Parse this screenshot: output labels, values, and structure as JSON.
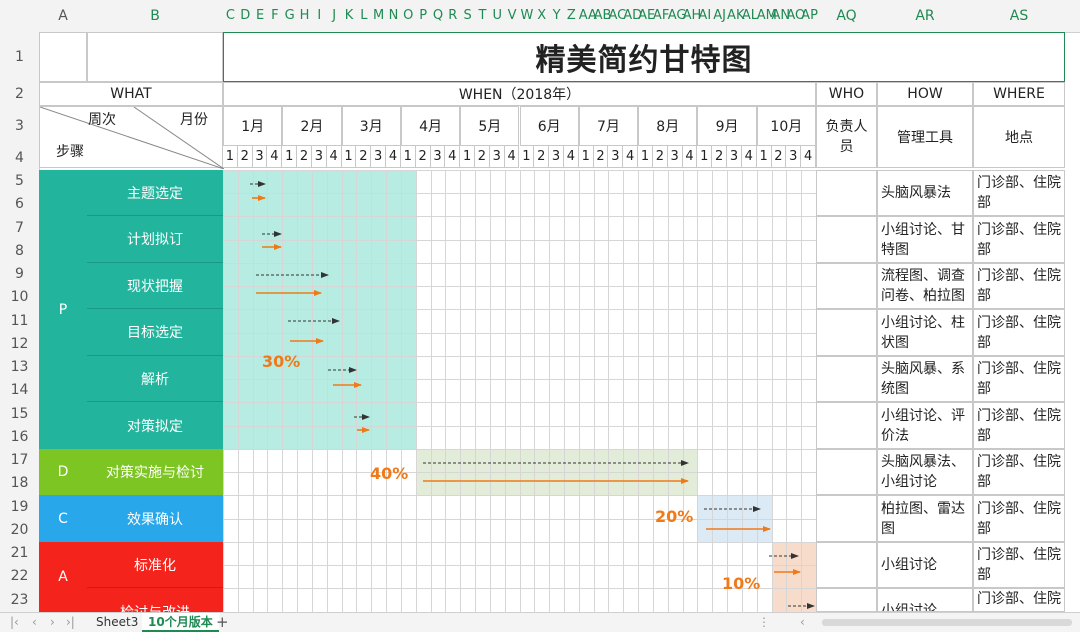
{
  "column_headers": [
    "A",
    "B",
    "C",
    "D",
    "E",
    "F",
    "G",
    "H",
    "I",
    "J",
    "K",
    "L",
    "M",
    "N",
    "O",
    "P",
    "Q",
    "R",
    "S",
    "T",
    "U",
    "V",
    "W",
    "X",
    "Y",
    "Z",
    "AA",
    "AB",
    "AC",
    "AD",
    "AE",
    "AF",
    "AG",
    "AH",
    "AI",
    "AJ",
    "AK",
    "AL",
    "AM",
    "AN",
    "AO",
    "AP",
    "AQ",
    "AR",
    "AS"
  ],
  "row_headers": [
    "1",
    "2",
    "3",
    "4",
    "5",
    "6",
    "7",
    "8",
    "9",
    "10",
    "11",
    "12",
    "13",
    "14",
    "15",
    "16",
    "17",
    "18",
    "19",
    "20",
    "21",
    "22",
    "23"
  ],
  "title": "精美简约甘特图",
  "headers": {
    "what": "WHAT",
    "when": "WHEN（2018年）",
    "who": "WHO",
    "how": "HOW",
    "where": "WHERE",
    "week": "周次",
    "month": "月份",
    "step": "步骤",
    "owner": "负责人员",
    "tool": "管理工具",
    "place": "地点"
  },
  "months": [
    "1月",
    "2月",
    "3月",
    "4月",
    "5月",
    "6月",
    "7月",
    "8月",
    "9月",
    "10月"
  ],
  "weeks": [
    "1",
    "2",
    "3",
    "4"
  ],
  "stages": [
    {
      "letter": "P",
      "color": "#22b49c"
    },
    {
      "letter": "D",
      "color": "#7dc522"
    },
    {
      "letter": "C",
      "color": "#28a8ea"
    },
    {
      "letter": "A",
      "color": "#f4231c"
    }
  ],
  "tasks": [
    {
      "name": "主题选定",
      "how": "头脑风暴法",
      "where": "门诊部、住院部"
    },
    {
      "name": "计划拟订",
      "how": "小组讨论、甘特图",
      "where": "门诊部、住院部"
    },
    {
      "name": "现状把握",
      "how": "流程图、调查问卷、柏拉图",
      "where": "门诊部、住院部"
    },
    {
      "name": "目标选定",
      "how": "小组讨论、柱状图",
      "where": "门诊部、住院部"
    },
    {
      "name": "解析",
      "how": "头脑风暴、系统图",
      "where": "门诊部、住院部"
    },
    {
      "name": "对策拟定",
      "how": "小组讨论、评价法",
      "where": "门诊部、住院部"
    },
    {
      "name": "对策实施与检讨",
      "how": "头脑风暴法、小组讨论",
      "where": "门诊部、住院部"
    },
    {
      "name": "效果确认",
      "how": "柏拉图、雷达图",
      "where": "门诊部、住院部"
    },
    {
      "name": "标准化",
      "how": "小组讨论",
      "where": "门诊部、住院部"
    },
    {
      "name": "检讨与改进",
      "how": "小组讨论",
      "where": "门诊部、住院部"
    }
  ],
  "percentages": {
    "plan": "30%",
    "do": "40%",
    "check": "20%",
    "act": "10%"
  },
  "sheet_tabs": [
    "Sheet3",
    "10个月版本"
  ],
  "active_tab": "10个月版本",
  "colors": {
    "plan_bg": "#b6ece1",
    "do_bg": "#e3ecd8",
    "check_bg": "#dceaf6",
    "act_bg": "#f8dccb",
    "actual": "#f07918",
    "planned": "#333333",
    "accent": "#1f8a52"
  }
}
